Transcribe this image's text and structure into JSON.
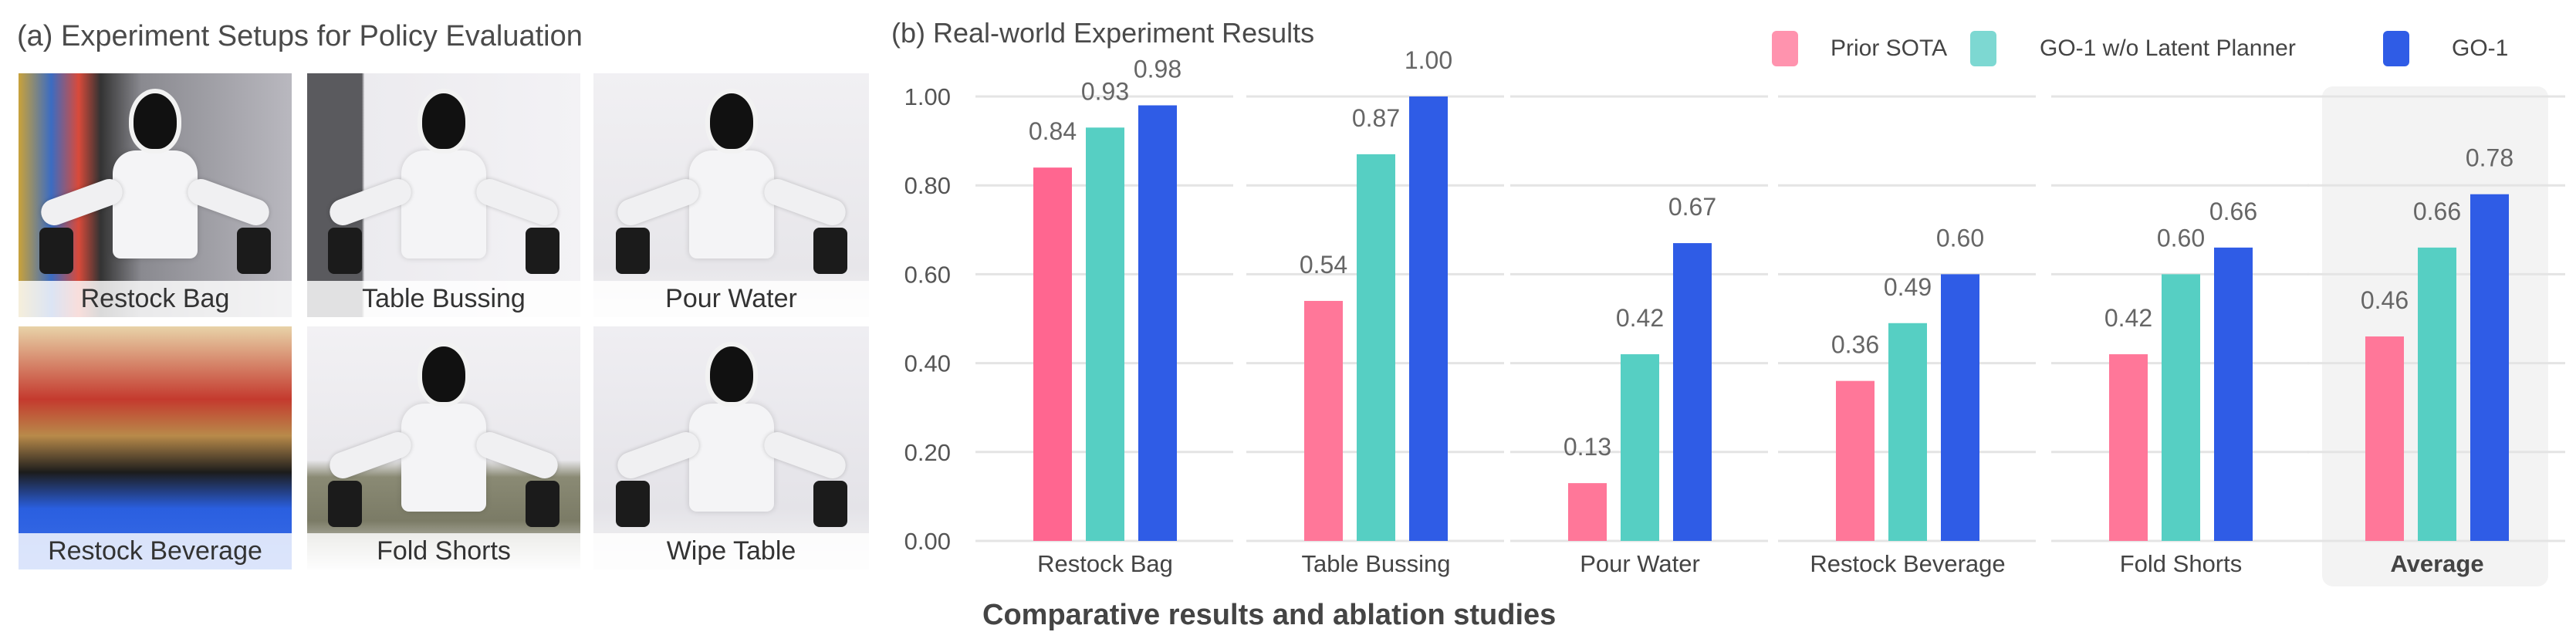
{
  "panel_a": {
    "title": "(a) Experiment Setups for Policy Evaluation",
    "photos": [
      {
        "label": "Restock Bag"
      },
      {
        "label": "Table Bussing"
      },
      {
        "label": "Pour Water"
      },
      {
        "label": "Restock Beverage"
      },
      {
        "label": "Fold Shorts"
      },
      {
        "label": "Wipe Table"
      }
    ]
  },
  "chart_data": {
    "type": "bar",
    "title": "(b) Real-world Experiment Results",
    "categories": [
      "Restock Bag",
      "Table Bussing",
      "Pour Water",
      "Restock Beverage",
      "Fold Shorts",
      "Average"
    ],
    "series": [
      {
        "name": "Prior SOTA",
        "color": "#ff7799",
        "values": [
          0.84,
          0.54,
          0.13,
          0.36,
          0.42,
          0.46
        ],
        "labels": [
          "0.84",
          "0.54",
          "0.13",
          "0.36",
          "0.42",
          "0.46"
        ]
      },
      {
        "name": "GO-1 w/o Latent Planner",
        "color": "#56cfc3",
        "values": [
          0.93,
          0.87,
          0.42,
          0.49,
          0.6,
          0.66
        ],
        "labels": [
          "0.93",
          "0.87",
          "0.42",
          "0.49",
          "0.60",
          "0.66"
        ]
      },
      {
        "name": "GO-1",
        "color": "#2f5ce6",
        "values": [
          0.98,
          1.0,
          0.67,
          0.6,
          0.66,
          0.78
        ],
        "labels": [
          "0.98",
          "1.00",
          "0.67",
          "0.60",
          "0.66",
          "0.78"
        ]
      }
    ],
    "yticks": [
      "0.00",
      "0.20",
      "0.40",
      "0.60",
      "0.80",
      "1.00"
    ],
    "ylim": [
      0,
      1.0
    ],
    "grid": true,
    "legend_placement": "top-right",
    "highlighted_category": "Average",
    "xlabel": "",
    "ylabel": ""
  },
  "caption": "Comparative results and ablation studies"
}
